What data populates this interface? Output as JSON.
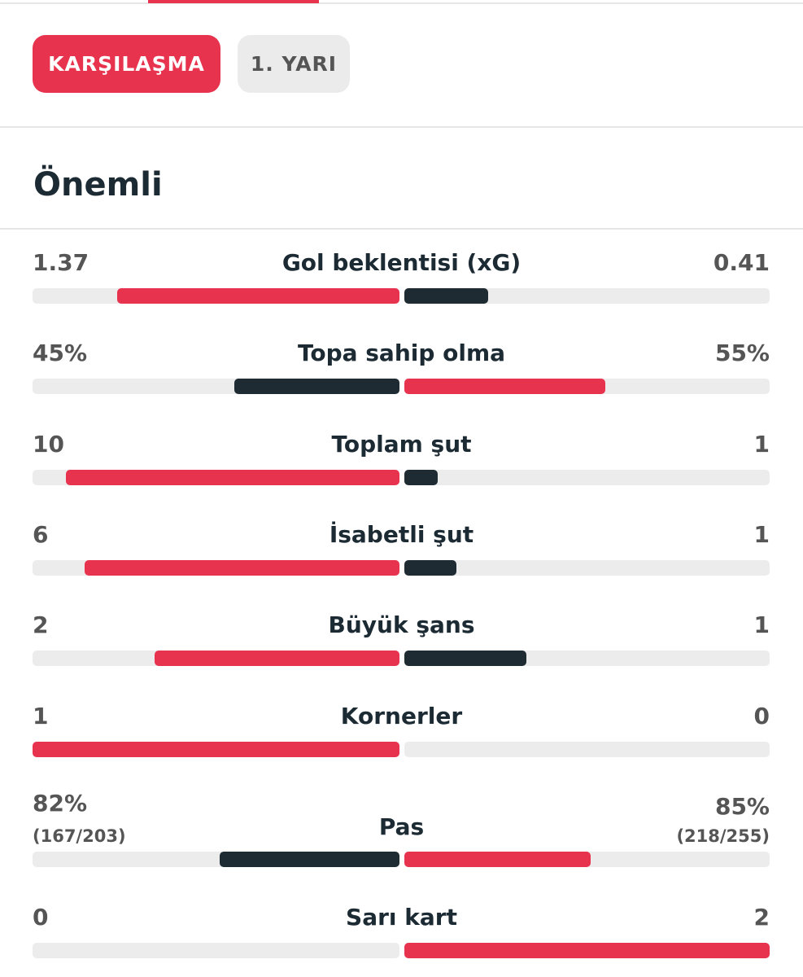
{
  "header": {
    "tabs": [
      "KARŞILAŞMA",
      "1. YARI"
    ]
  },
  "section": {
    "title": "Önemli",
    "rows": [
      {
        "label": "Gol beklentisi (xG)",
        "home": 1.37,
        "away": 0.41
      },
      {
        "label": "Topa sahip olma",
        "home": {
          "value": 45,
          "label": "45%"
        },
        "away": {
          "value": 55,
          "label": "55%"
        }
      },
      {
        "label": "Toplam şut",
        "home": 10,
        "away": 1
      },
      {
        "label": "İsabetli şut",
        "home": 6,
        "away": 1
      },
      {
        "label": "Büyük şans",
        "home": 2,
        "away": 1
      },
      {
        "label": "Kornerler",
        "home": 1,
        "away": 0
      },
      {
        "label": "Pas",
        "home": {
          "value": 82,
          "label": "82%"
        },
        "away": {
          "value": 85,
          "label": "85%"
        },
        "home_detail": "(167/203)",
        "away_detail": "(218/255)"
      },
      {
        "label": "Sarı kart",
        "home": 0,
        "away": 2
      }
    ]
  }
}
